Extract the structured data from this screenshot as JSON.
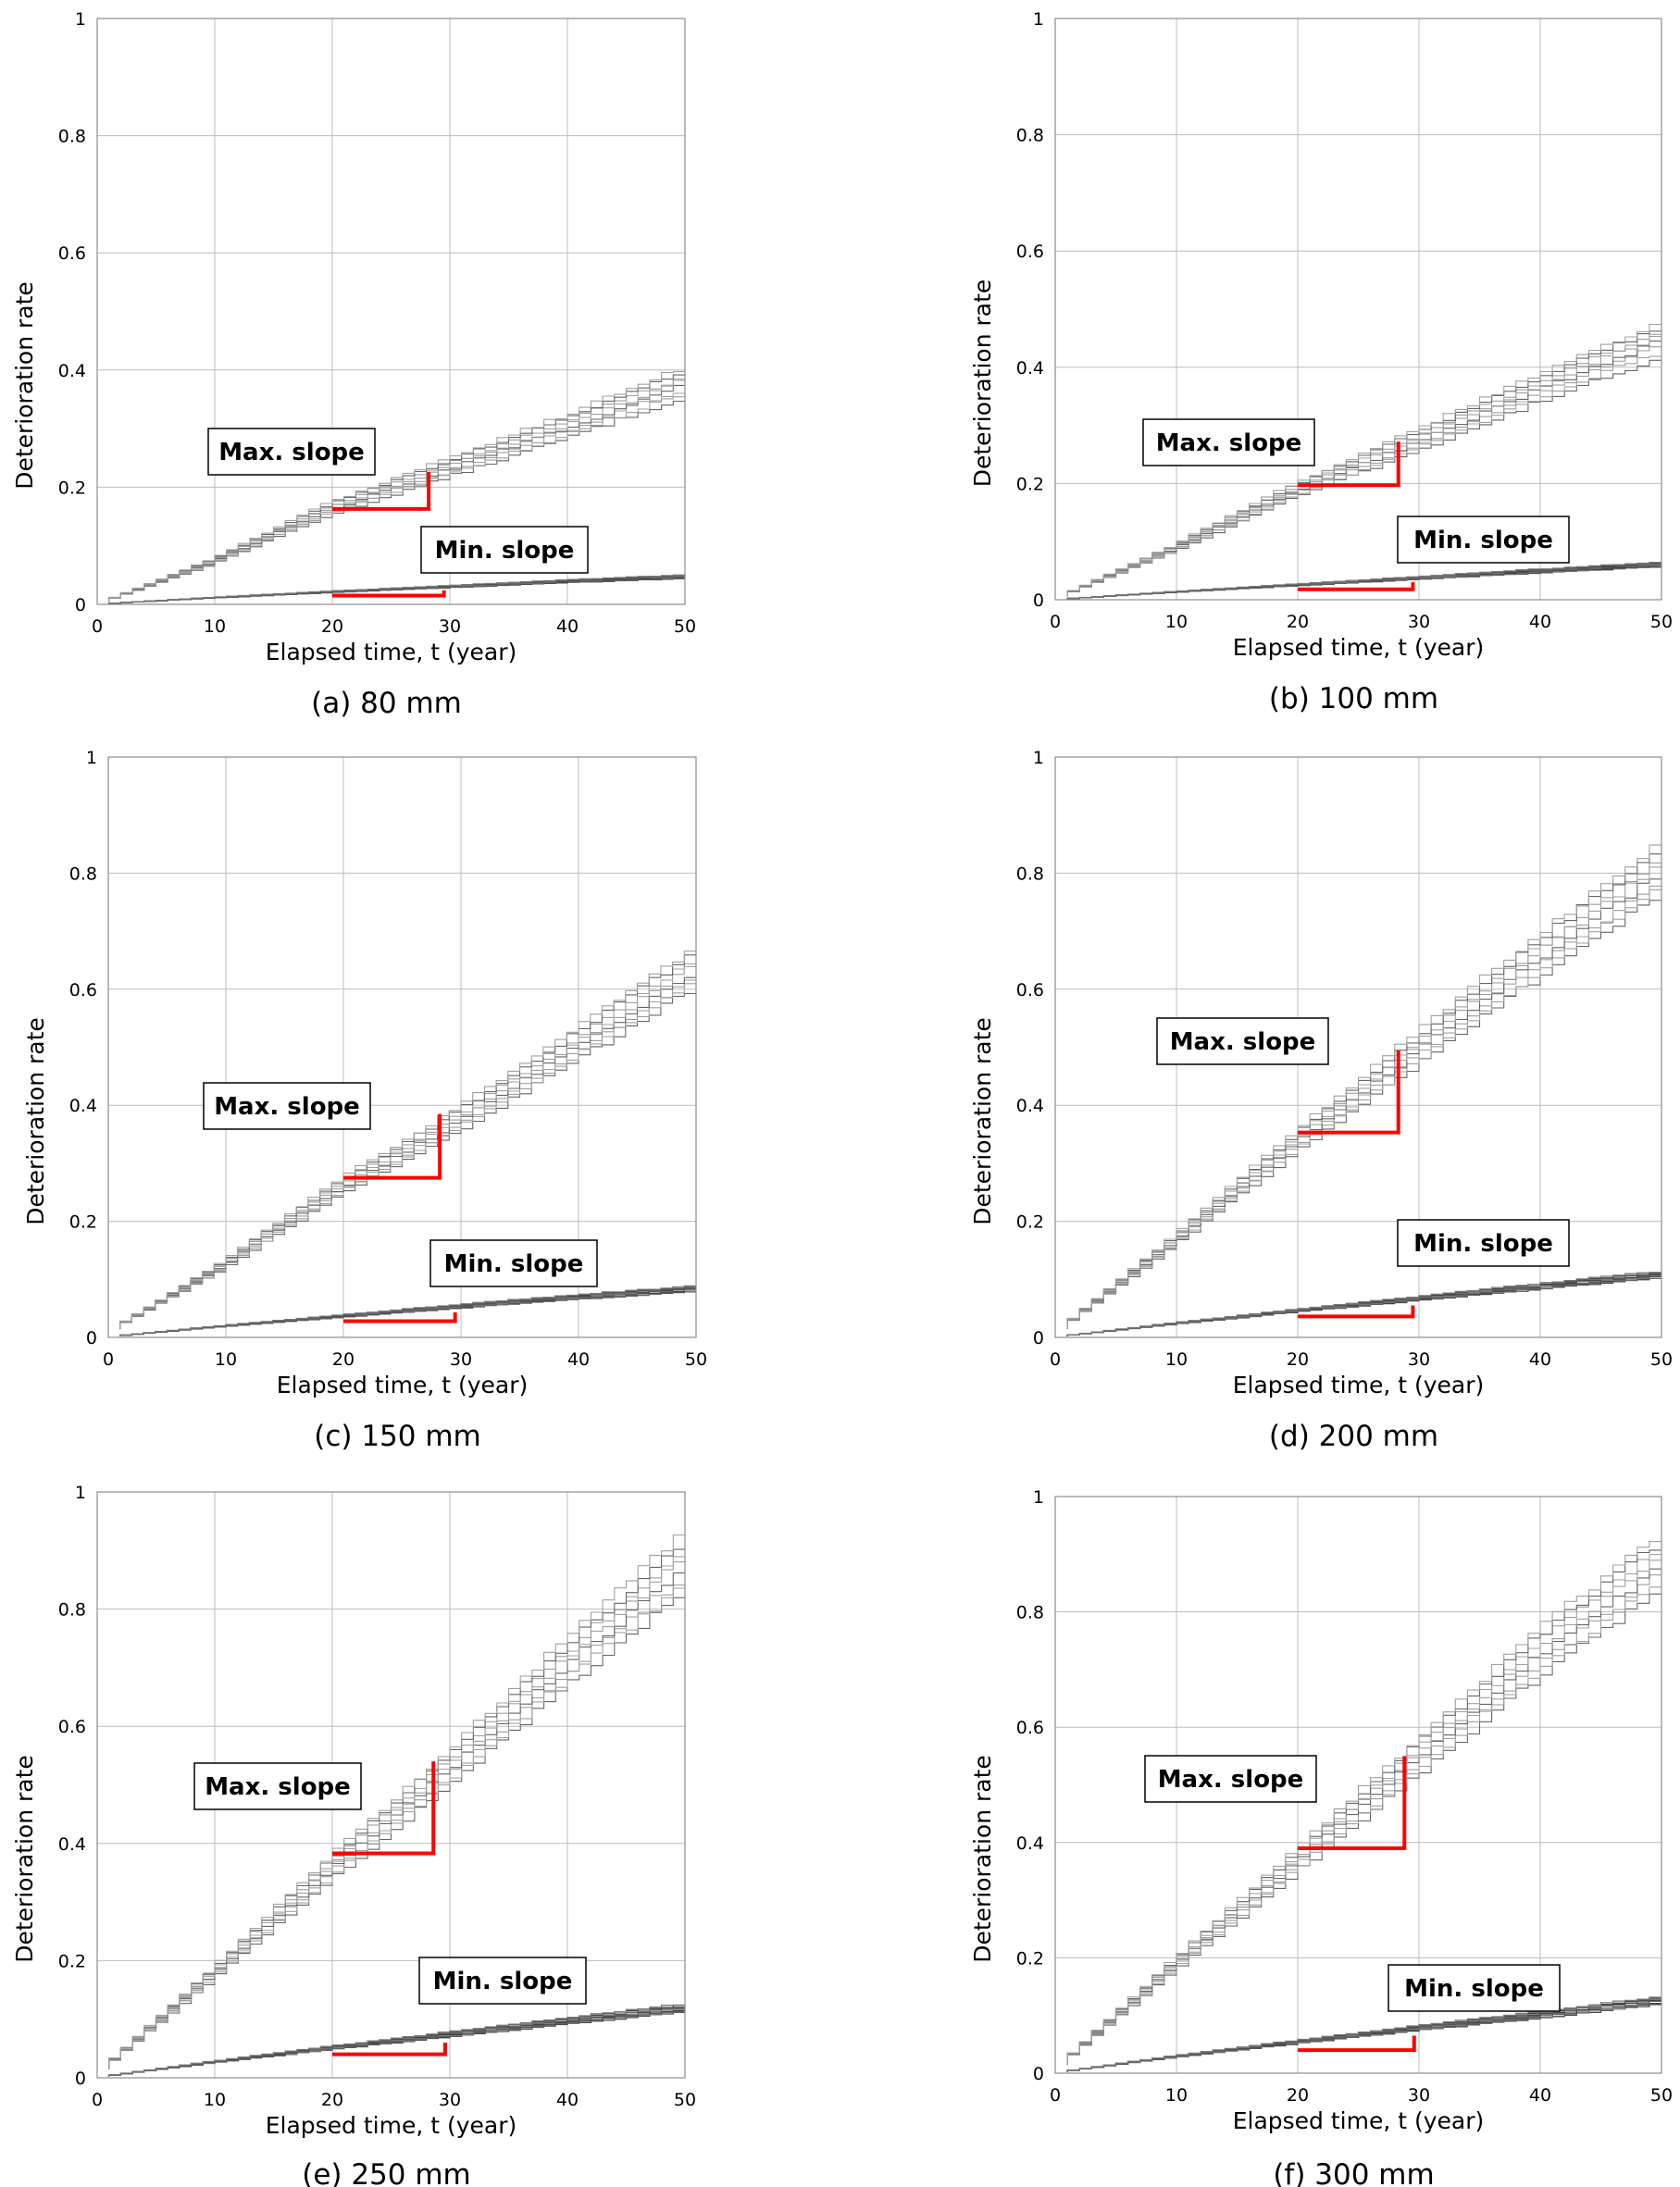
{
  "chart_data": [
    {
      "type": "line",
      "caption": "(a) 80 mm",
      "xlabel": "Elapsed time, t (year)",
      "ylabel": "Deterioration rate",
      "xlim": [
        0,
        50
      ],
      "ylim": [
        0,
        1
      ],
      "xticks": [
        "0",
        "10",
        "20",
        "30",
        "40",
        "50"
      ],
      "yticks": [
        "0",
        "0.2",
        "0.4",
        "0.6",
        "0.8",
        "1"
      ],
      "grid": true,
      "series": [
        {
          "x": [
            1,
            10,
            20,
            30,
            40,
            50
          ],
          "values": [
            0.004,
            0.07,
            0.16,
            0.23,
            0.3,
            0.375
          ],
          "spread": 0.025,
          "count": 8
        },
        {
          "x": [
            1,
            10,
            20,
            30,
            40,
            50
          ],
          "values": [
            0.001,
            0.011,
            0.021,
            0.03,
            0.039,
            0.047
          ],
          "spread": 0.003,
          "count": 8
        }
      ],
      "annotations": {
        "max_label": "Max. slope",
        "min_label": "Min. slope",
        "max_marker": {
          "x": [
            20,
            28.2
          ],
          "y": [
            0.163,
            0.226
          ]
        },
        "min_marker": {
          "x": [
            20,
            29.5
          ],
          "y": [
            0.015,
            0.024
          ]
        }
      }
    },
    {
      "type": "line",
      "caption": "(b) 100 mm",
      "xlabel": "Elapsed time, t (year)",
      "ylabel": "Deterioration rate",
      "xlim": [
        0,
        50
      ],
      "ylim": [
        0,
        1
      ],
      "xticks": [
        "0",
        "10",
        "20",
        "30",
        "40",
        "50"
      ],
      "yticks": [
        "0",
        "0.2",
        "0.4",
        "0.6",
        "0.8",
        "1"
      ],
      "grid": true,
      "series": [
        {
          "x": [
            1,
            10,
            20,
            30,
            40,
            50
          ],
          "values": [
            0.006,
            0.085,
            0.185,
            0.27,
            0.36,
            0.445
          ],
          "spread": 0.03,
          "count": 8
        },
        {
          "x": [
            1,
            10,
            20,
            30,
            40,
            50
          ],
          "values": [
            0.001,
            0.013,
            0.025,
            0.037,
            0.049,
            0.06
          ],
          "spread": 0.004,
          "count": 8
        }
      ],
      "annotations": {
        "max_label": "Max. slope",
        "min_label": "Min. slope",
        "max_marker": {
          "x": [
            20,
            28.3
          ],
          "y": [
            0.197,
            0.272
          ]
        },
        "min_marker": {
          "x": [
            20,
            29.5
          ],
          "y": [
            0.018,
            0.03
          ]
        }
      }
    },
    {
      "type": "line",
      "caption": "(c) 150 mm",
      "xlabel": "Elapsed time, t (year)",
      "ylabel": "Deterioration rate",
      "xlim": [
        0,
        50
      ],
      "ylim": [
        0,
        1
      ],
      "xticks": [
        "0",
        "10",
        "20",
        "30",
        "40",
        "50"
      ],
      "yticks": [
        "0",
        "0.2",
        "0.4",
        "0.6",
        "0.8",
        "1"
      ],
      "grid": true,
      "series": [
        {
          "x": [
            1,
            10,
            20,
            30,
            40,
            50
          ],
          "values": [
            0.015,
            0.12,
            0.255,
            0.37,
            0.5,
            0.63
          ],
          "spread": 0.035,
          "count": 8
        },
        {
          "x": [
            1,
            10,
            20,
            30,
            40,
            50
          ],
          "values": [
            0.002,
            0.019,
            0.036,
            0.053,
            0.069,
            0.083
          ],
          "spread": 0.005,
          "count": 8
        }
      ],
      "annotations": {
        "max_label": "Max. slope",
        "min_label": "Min. slope",
        "max_marker": {
          "x": [
            20,
            28.2
          ],
          "y": [
            0.275,
            0.385
          ]
        },
        "min_marker": {
          "x": [
            20,
            29.5
          ],
          "y": [
            0.028,
            0.043
          ]
        }
      }
    },
    {
      "type": "line",
      "caption": "(d) 200 mm",
      "xlabel": "Elapsed time, t (year)",
      "ylabel": "Deterioration rate",
      "xlim": [
        0,
        50
      ],
      "ylim": [
        0,
        1
      ],
      "xticks": [
        "0",
        "10",
        "20",
        "30",
        "40",
        "50"
      ],
      "yticks": [
        "0",
        "0.2",
        "0.4",
        "0.6",
        "0.8",
        "1"
      ],
      "grid": true,
      "series": [
        {
          "x": [
            1,
            10,
            20,
            30,
            40,
            50
          ],
          "values": [
            0.015,
            0.16,
            0.33,
            0.49,
            0.65,
            0.8
          ],
          "spread": 0.045,
          "count": 8
        },
        {
          "x": [
            1,
            10,
            20,
            30,
            40,
            50
          ],
          "values": [
            0.002,
            0.023,
            0.045,
            0.066,
            0.087,
            0.107
          ],
          "spread": 0.006,
          "count": 8
        }
      ],
      "annotations": {
        "max_label": "Max. slope",
        "min_label": "Min. slope",
        "max_marker": {
          "x": [
            20,
            28.3
          ],
          "y": [
            0.353,
            0.495
          ]
        },
        "min_marker": {
          "x": [
            20,
            29.5
          ],
          "y": [
            0.036,
            0.055
          ]
        }
      }
    },
    {
      "type": "line",
      "caption": "(e) 250 mm",
      "xlabel": "Elapsed time, t (year)",
      "ylabel": "Deterioration rate",
      "xlim": [
        0,
        50
      ],
      "ylim": [
        0,
        1
      ],
      "xticks": [
        "0",
        "10",
        "20",
        "30",
        "40",
        "50"
      ],
      "yticks": [
        "0",
        "0.2",
        "0.4",
        "0.6",
        "0.8",
        "1"
      ],
      "grid": true,
      "series": [
        {
          "x": [
            1,
            10,
            20,
            30,
            40,
            50
          ],
          "values": [
            0.015,
            0.17,
            0.35,
            0.52,
            0.7,
            0.87
          ],
          "spread": 0.05,
          "count": 8
        },
        {
          "x": [
            1,
            10,
            20,
            30,
            40,
            50
          ],
          "values": [
            0.002,
            0.026,
            0.05,
            0.073,
            0.096,
            0.118
          ],
          "spread": 0.007,
          "count": 8
        }
      ],
      "annotations": {
        "max_label": "Max. slope",
        "min_label": "Min. slope",
        "max_marker": {
          "x": [
            20,
            28.6
          ],
          "y": [
            0.383,
            0.54
          ]
        },
        "min_marker": {
          "x": [
            20,
            29.6
          ],
          "y": [
            0.04,
            0.06
          ]
        }
      }
    },
    {
      "type": "line",
      "caption": "(f) 300 mm",
      "xlabel": "Elapsed time, t (year)",
      "ylabel": "Deterioration rate",
      "xlim": [
        0,
        50
      ],
      "ylim": [
        0,
        1
      ],
      "xticks": [
        "0",
        "10",
        "20",
        "30",
        "40",
        "50"
      ],
      "yticks": [
        "0",
        "0.2",
        "0.4",
        "0.6",
        "0.8",
        "1"
      ],
      "grid": true,
      "series": [
        {
          "x": [
            1,
            10,
            20,
            30,
            40,
            50
          ],
          "values": [
            0.015,
            0.18,
            0.36,
            0.54,
            0.72,
            0.88
          ],
          "spread": 0.05,
          "count": 8
        },
        {
          "x": [
            1,
            10,
            20,
            30,
            40,
            50
          ],
          "values": [
            0.002,
            0.028,
            0.053,
            0.077,
            0.1,
            0.125
          ],
          "spread": 0.007,
          "count": 8
        }
      ],
      "annotations": {
        "max_label": "Max. slope",
        "min_label": "Min. slope",
        "max_marker": {
          "x": [
            20,
            28.8
          ],
          "y": [
            0.39,
            0.55
          ]
        },
        "min_marker": {
          "x": [
            20,
            29.6
          ],
          "y": [
            0.04,
            0.065
          ]
        }
      }
    }
  ]
}
